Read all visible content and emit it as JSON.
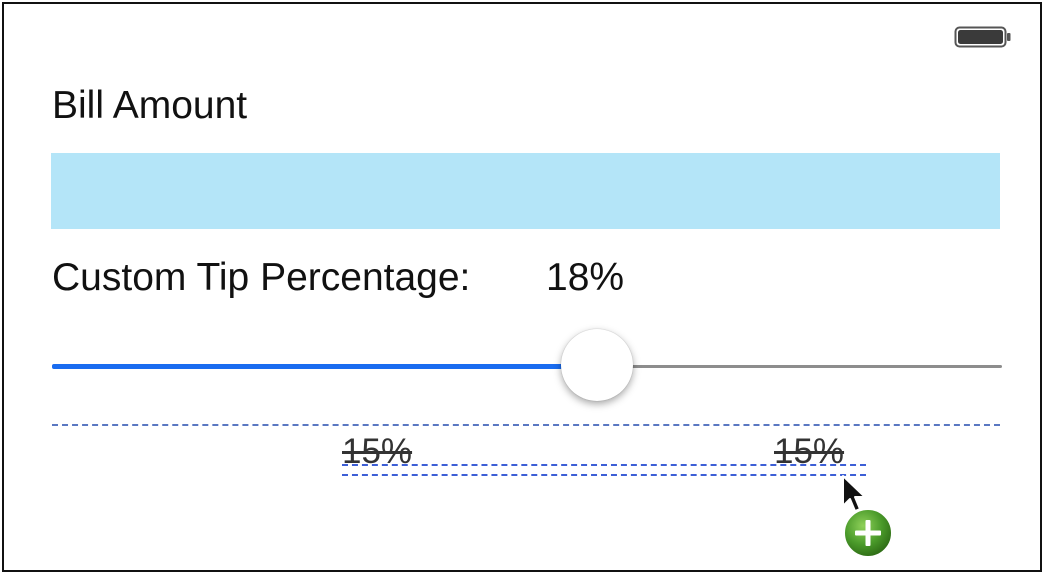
{
  "status_bar": {
    "battery_icon": "battery-icon"
  },
  "bill": {
    "label": "Bill Amount",
    "value": "",
    "placeholder": "",
    "field_color": "#b4e5f8"
  },
  "tip": {
    "label": "Custom Tip Percentage:",
    "value_label": "18%",
    "slider_level": 0.58,
    "accent_color": "#1a6cf0"
  },
  "outlet": {
    "left_label": "15%",
    "right_label": "15%",
    "guide_color": "#5a78c2"
  },
  "cursor": {
    "icon": "arrow-cursor-icon",
    "badge_icon": "add-badge-icon",
    "badge_color": "#4a9a2a"
  }
}
